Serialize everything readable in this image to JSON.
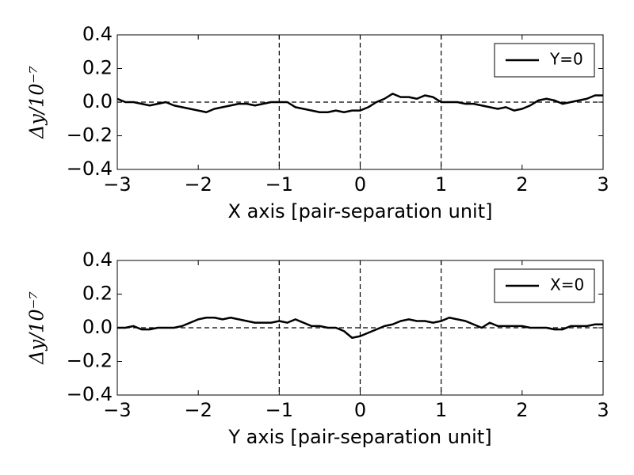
{
  "chart_data": [
    {
      "type": "line",
      "x": [
        -3.0,
        -2.9,
        -2.8,
        -2.7,
        -2.6,
        -2.5,
        -2.4,
        -2.3,
        -2.2,
        -2.1,
        -2.0,
        -1.9,
        -1.8,
        -1.7,
        -1.6,
        -1.5,
        -1.4,
        -1.3,
        -1.2,
        -1.1,
        -1.0,
        -0.9,
        -0.8,
        -0.7,
        -0.6,
        -0.5,
        -0.4,
        -0.3,
        -0.2,
        -0.1,
        0.0,
        0.1,
        0.2,
        0.3,
        0.4,
        0.5,
        0.6,
        0.7,
        0.8,
        0.9,
        1.0,
        1.1,
        1.2,
        1.3,
        1.4,
        1.5,
        1.6,
        1.7,
        1.8,
        1.9,
        2.0,
        2.1,
        2.2,
        2.3,
        2.4,
        2.5,
        2.6,
        2.7,
        2.8,
        2.9,
        3.0
      ],
      "series": [
        {
          "name": "Y=0",
          "color": "#000000",
          "values": [
            0.02,
            0.0,
            0.0,
            -0.01,
            -0.02,
            -0.01,
            0.0,
            -0.02,
            -0.03,
            -0.04,
            -0.05,
            -0.06,
            -0.04,
            -0.03,
            -0.02,
            -0.01,
            -0.01,
            -0.02,
            -0.01,
            0.0,
            0.0,
            0.0,
            -0.03,
            -0.04,
            -0.05,
            -0.06,
            -0.06,
            -0.05,
            -0.06,
            -0.05,
            -0.05,
            -0.03,
            0.0,
            0.02,
            0.05,
            0.03,
            0.03,
            0.02,
            0.04,
            0.03,
            0.0,
            0.0,
            0.0,
            -0.01,
            -0.01,
            -0.02,
            -0.03,
            -0.04,
            -0.03,
            -0.05,
            -0.04,
            -0.02,
            0.01,
            0.02,
            0.01,
            -0.01,
            0.0,
            0.01,
            0.02,
            0.04,
            0.04
          ]
        }
      ],
      "xlabel": "X axis [pair-separation unit]",
      "ylabel": "Δy/10⁻⁷",
      "xlim": [
        -3,
        3
      ],
      "ylim": [
        -0.4,
        0.4
      ],
      "xticks": [
        {
          "value": -3,
          "label": "−3"
        },
        {
          "value": -2,
          "label": "−2"
        },
        {
          "value": -1,
          "label": "−1"
        },
        0,
        1,
        2,
        3
      ],
      "yticks": [
        {
          "value": -0.4,
          "label": "−0.4"
        },
        {
          "value": -0.2,
          "label": "−0.2"
        },
        {
          "value": 0,
          "label": "0.0"
        },
        0.2,
        0.4
      ],
      "vlines": [
        -1,
        0,
        1
      ],
      "hlines": [
        0
      ],
      "legend": "upper right"
    },
    {
      "type": "line",
      "x": [
        -3.0,
        -2.9,
        -2.8,
        -2.7,
        -2.6,
        -2.5,
        -2.4,
        -2.3,
        -2.2,
        -2.1,
        -2.0,
        -1.9,
        -1.8,
        -1.7,
        -1.6,
        -1.5,
        -1.4,
        -1.3,
        -1.2,
        -1.1,
        -1.0,
        -0.9,
        -0.8,
        -0.7,
        -0.6,
        -0.5,
        -0.4,
        -0.3,
        -0.2,
        -0.1,
        0.0,
        0.1,
        0.2,
        0.3,
        0.4,
        0.5,
        0.6,
        0.7,
        0.8,
        0.9,
        1.0,
        1.1,
        1.2,
        1.3,
        1.4,
        1.5,
        1.6,
        1.7,
        1.8,
        1.9,
        2.0,
        2.1,
        2.2,
        2.3,
        2.4,
        2.5,
        2.6,
        2.7,
        2.8,
        2.9,
        3.0
      ],
      "series": [
        {
          "name": "X=0",
          "color": "#000000",
          "values": [
            0.0,
            0.0,
            0.01,
            -0.01,
            -0.01,
            0.0,
            0.0,
            0.0,
            0.01,
            0.03,
            0.05,
            0.06,
            0.06,
            0.05,
            0.06,
            0.05,
            0.04,
            0.03,
            0.03,
            0.03,
            0.04,
            0.03,
            0.05,
            0.03,
            0.01,
            0.01,
            0.0,
            0.0,
            -0.02,
            -0.06,
            -0.05,
            -0.03,
            -0.01,
            0.01,
            0.02,
            0.04,
            0.05,
            0.04,
            0.04,
            0.03,
            0.04,
            0.06,
            0.05,
            0.04,
            0.02,
            0.0,
            0.03,
            0.01,
            0.01,
            0.01,
            0.01,
            0.0,
            0.0,
            0.0,
            -0.01,
            -0.01,
            0.01,
            0.01,
            0.01,
            0.02,
            0.02
          ]
        }
      ],
      "xlabel": "Y axis [pair-separation unit]",
      "ylabel": "Δy/10⁻⁷",
      "xlim": [
        -3,
        3
      ],
      "ylim": [
        -0.4,
        0.4
      ],
      "xticks": [
        {
          "value": -3,
          "label": "−3"
        },
        {
          "value": -2,
          "label": "−2"
        },
        {
          "value": -1,
          "label": "−1"
        },
        0,
        1,
        2,
        3
      ],
      "yticks": [
        {
          "value": -0.4,
          "label": "−0.4"
        },
        {
          "value": -0.2,
          "label": "−0.2"
        },
        {
          "value": 0,
          "label": "0.0"
        },
        0.2,
        0.4
      ],
      "vlines": [
        -1,
        0,
        1
      ],
      "hlines": [
        0
      ],
      "legend": "upper right"
    }
  ]
}
